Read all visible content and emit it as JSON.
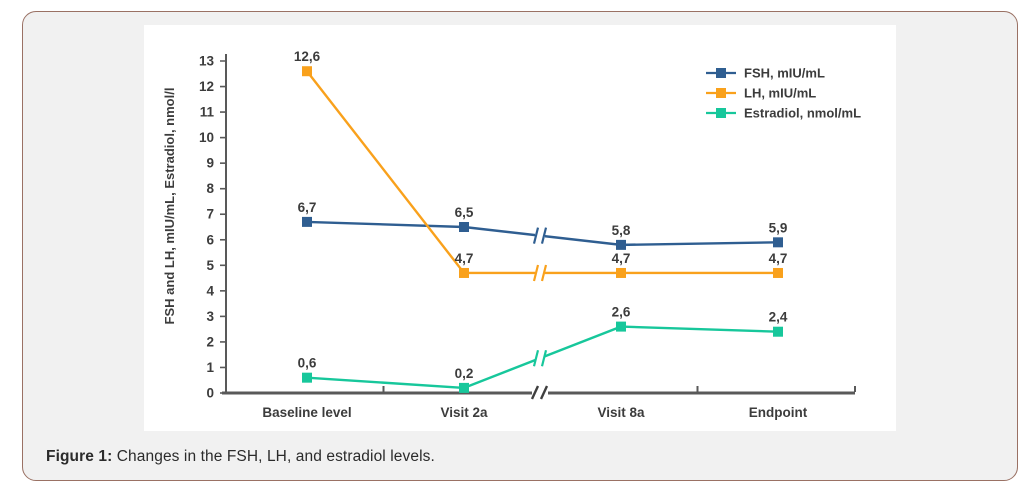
{
  "caption": {
    "label": "Figure 1:",
    "text": " Changes in the FSH, LH, and estradiol levels."
  },
  "colors": {
    "card_border": "#9a7164",
    "card_bg": "#f1f1f1",
    "panel_bg": "#ffffff",
    "axis": "#595959",
    "break_mark": "#3f3f3f",
    "text": "#3c3c3c",
    "fsh": "#2f5e91",
    "lh": "#f9a11c",
    "estradiol": "#17c79b"
  },
  "chart_data": {
    "type": "line",
    "title": "",
    "xlabel": "",
    "ylabel": "FSH and LH, mIU/mL,  Estradiol, nmol/l",
    "categories": [
      "Baseline level",
      "Visit 2a",
      "Visit 8a",
      "Endpoint"
    ],
    "ylim": [
      0,
      13
    ],
    "yticks": [
      0,
      1,
      2,
      3,
      4,
      5,
      6,
      7,
      8,
      9,
      10,
      11,
      12,
      13
    ],
    "grid": false,
    "legend_position": "top-right",
    "axis_break_between": [
      "Visit 2a",
      "Visit 8a"
    ],
    "series": [
      {
        "name": "FSH, mIU/mL",
        "color_key": "fsh",
        "values": [
          6.7,
          6.5,
          5.8,
          5.9
        ],
        "point_labels": [
          "6,7",
          "6,5",
          "5,8",
          "5,9"
        ]
      },
      {
        "name": "LH, mIU/mL",
        "color_key": "lh",
        "values": [
          12.6,
          4.7,
          4.7,
          4.7
        ],
        "point_labels": [
          "12,6",
          "4,7",
          "4,7",
          "4,7"
        ]
      },
      {
        "name": "Estradiol, nmol/mL",
        "color_key": "estradiol",
        "values": [
          0.6,
          0.2,
          2.6,
          2.4
        ],
        "point_labels": [
          "0,6",
          "0,2",
          "2,6",
          "2,4"
        ]
      }
    ]
  }
}
